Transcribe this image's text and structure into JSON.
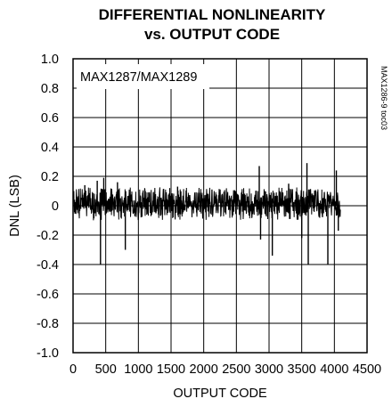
{
  "chart_data": {
    "type": "line",
    "title": [
      "DIFFERENTIAL NONLINEARITY",
      "vs. OUTPUT CODE"
    ],
    "xlabel": "OUTPUT CODE",
    "ylabel": "DNL (LSB)",
    "xlim": [
      0,
      4500
    ],
    "ylim": [
      -1.0,
      1.0
    ],
    "x_ticks": [
      "0",
      "500",
      "1000",
      "1500",
      "2000",
      "2500",
      "3000",
      "3500",
      "4000",
      "4500"
    ],
    "y_ticks": [
      "1.0",
      "0.8",
      "0.6",
      "0.4",
      "0.2",
      "0",
      "-0.2",
      "-0.4",
      "-0.6",
      "-0.8",
      "-1.0"
    ],
    "grid": true,
    "annotation": "MAX1287/MAX1289",
    "side_label": "MAX1286-9 toc03",
    "series": [
      {
        "x_range": [
          0,
          4095
        ],
        "noise_band": [
          -0.1,
          0.13
        ],
        "spikes": [
          {
            "x": 180,
            "y": 0.14
          },
          {
            "x": 370,
            "y": 0.17
          },
          {
            "x": 420,
            "y": -0.4
          },
          {
            "x": 470,
            "y": 0.19
          },
          {
            "x": 680,
            "y": 0.16
          },
          {
            "x": 800,
            "y": -0.3
          },
          {
            "x": 1600,
            "y": 0.13
          },
          {
            "x": 2850,
            "y": 0.27
          },
          {
            "x": 2870,
            "y": -0.23
          },
          {
            "x": 3050,
            "y": -0.34
          },
          {
            "x": 3300,
            "y": 0.15
          },
          {
            "x": 3500,
            "y": -0.22
          },
          {
            "x": 3580,
            "y": 0.29
          },
          {
            "x": 3600,
            "y": -0.4
          },
          {
            "x": 3900,
            "y": -0.4
          },
          {
            "x": 4030,
            "y": 0.24
          },
          {
            "x": 4060,
            "y": -0.17
          }
        ]
      }
    ]
  }
}
